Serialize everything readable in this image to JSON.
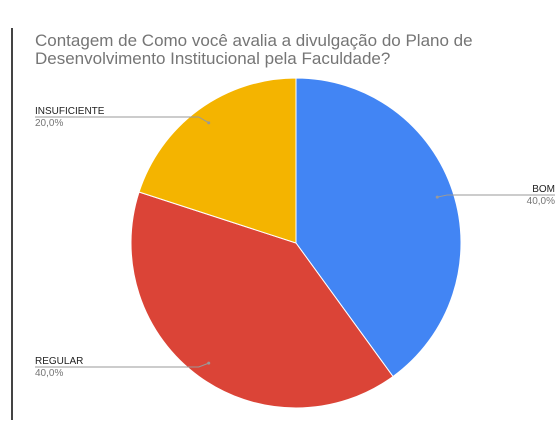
{
  "chart_data": {
    "type": "pie",
    "title": [
      "Contagem de Como você avalia a divulgação do Plano de",
      "Desenvolvimento Institucional pela Faculdade?"
    ],
    "categories": [
      "BOM",
      "REGULAR",
      "INSUFICIENTE"
    ],
    "values": [
      40,
      40,
      20
    ],
    "value_labels": [
      "40,0%",
      "40,0%",
      "20,0%"
    ],
    "colors": [
      "#4285f4",
      "#db4437",
      "#f4b400"
    ]
  }
}
